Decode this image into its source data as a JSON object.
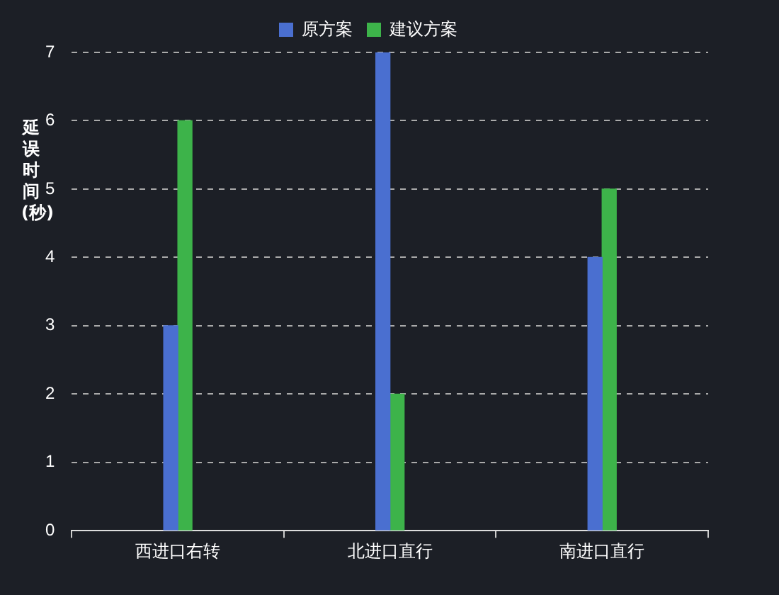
{
  "chart_data": {
    "type": "bar",
    "ylabel": "延误时间(秒)",
    "categories": [
      "西进口右转",
      "北进口直行",
      "南进口直行"
    ],
    "series": [
      {
        "name": "原方案",
        "color": "#4a6fd0",
        "values": [
          3,
          7,
          4
        ]
      },
      {
        "name": "建议方案",
        "color": "#3db34a",
        "values": [
          6,
          2,
          5
        ]
      }
    ],
    "ylim": [
      0,
      7
    ],
    "yticks": [
      0,
      1,
      2,
      3,
      4,
      5,
      6,
      7
    ],
    "grid": "y",
    "legend": "top"
  }
}
